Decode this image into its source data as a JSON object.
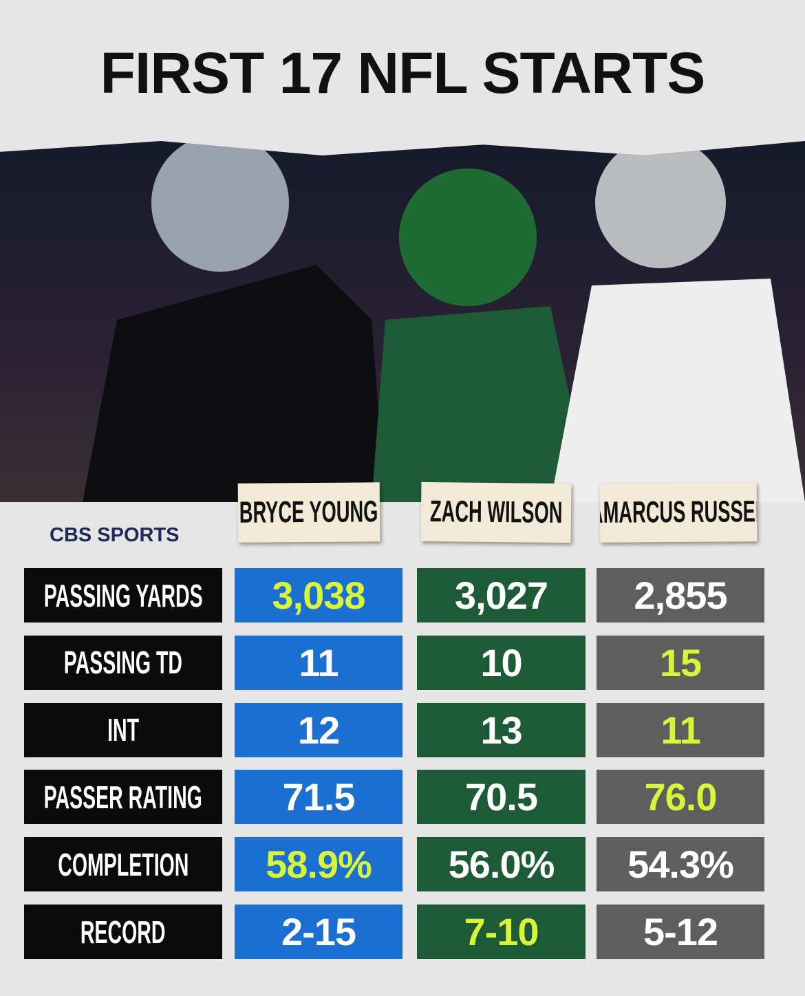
{
  "title": "FIRST 17 NFL STARTS",
  "brand": "CBS SPORTS",
  "players": [
    "BRYCE YOUNG",
    "ZACH WILSON",
    "JAMARCUS RUSSELL"
  ],
  "column_colors": [
    "#1a6fd0",
    "#1d5a36",
    "#5e5e5e"
  ],
  "highlight_color": "#d9f53a",
  "table": {
    "rows": [
      {
        "label": "PASSING YARDS",
        "values": [
          "3,038",
          "3,027",
          "2,855"
        ],
        "highlight": 0
      },
      {
        "label": "PASSING TD",
        "values": [
          "11",
          "10",
          "15"
        ],
        "highlight": 2
      },
      {
        "label": "INT",
        "values": [
          "12",
          "13",
          "11"
        ],
        "highlight": 2
      },
      {
        "label": "PASSER RATING",
        "values": [
          "71.5",
          "70.5",
          "76.0"
        ],
        "highlight": 2
      },
      {
        "label": "COMPLETION",
        "values": [
          "58.9%",
          "56.0%",
          "54.3%"
        ],
        "highlight": 0
      },
      {
        "label": "RECORD",
        "values": [
          "2-15",
          "7-10",
          "5-12"
        ],
        "highlight": 1
      }
    ]
  }
}
